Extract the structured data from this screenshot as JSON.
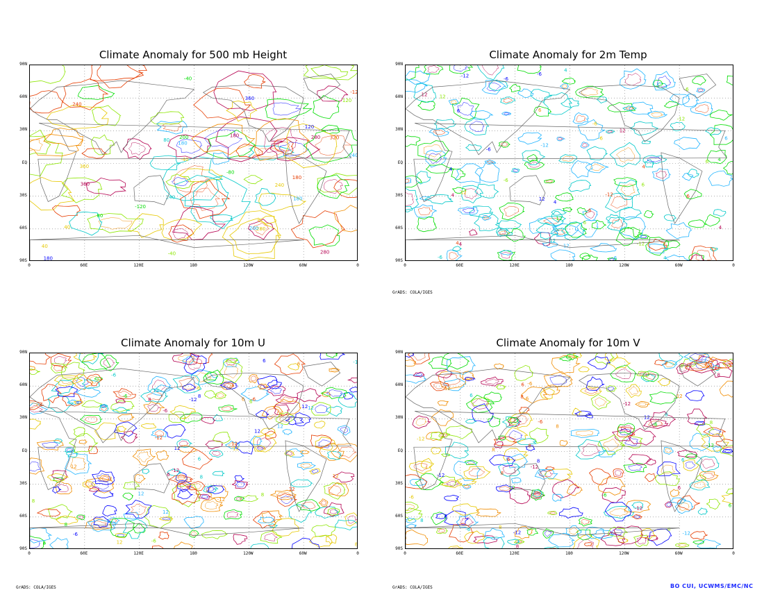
{
  "panels": [
    {
      "title": "Climate Anomaly for 500 mb Height",
      "style": "height"
    },
    {
      "title": "Climate Anomaly for 2m Temp",
      "style": "temp"
    },
    {
      "title": "Climate Anomaly for 10m U",
      "style": "wind"
    },
    {
      "title": "Climate Anomaly for 10m V",
      "style": "wind"
    }
  ],
  "lat_ticks": [
    "90N",
    "60N",
    "30N",
    "EQ",
    "30S",
    "60S",
    "90S"
  ],
  "lon_ticks": [
    "0",
    "60E",
    "120E",
    "180",
    "120W",
    "60W",
    "0"
  ],
  "grads_label": "GrADS: COLA/IGES",
  "credit": "BO CUI, UCWMS/EMC/NC",
  "contour_colors": [
    "#00c8c8",
    "#20b4ff",
    "#00dc00",
    "#8ce600",
    "#e6c800",
    "#f08c00",
    "#e63c00",
    "#b40050",
    "#0000ff"
  ],
  "sample_contour_labels": {
    "height": [
      "120",
      "180",
      "240",
      "80",
      "40",
      "-40",
      "-80",
      "-120",
      "280",
      "320",
      "200",
      "360"
    ],
    "temp": [
      "12",
      "6",
      "-6",
      "4",
      "-12"
    ],
    "wind": [
      "-12",
      "12",
      "-6",
      "6",
      "8"
    ]
  }
}
